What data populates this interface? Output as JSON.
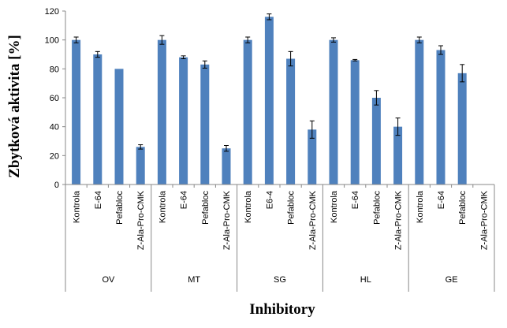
{
  "chart_data": {
    "type": "bar",
    "title": "",
    "xlabel": "Inhibitory",
    "ylabel": "Zbytková aktivita [%]",
    "ylim": [
      0,
      120
    ],
    "yticks": [
      0,
      20,
      40,
      60,
      80,
      100,
      120
    ],
    "grid": false,
    "legend": "none",
    "bar_color": "#4f81bd",
    "groups": [
      {
        "name": "OV",
        "categories": [
          "Kontrola",
          "E-64",
          "Pefabloc",
          "Z-Ala-Pro-CMK"
        ],
        "values": [
          100,
          90,
          80,
          26
        ],
        "errors": [
          2,
          2,
          0,
          1.5
        ]
      },
      {
        "name": "MT",
        "categories": [
          "Kontrola",
          "E-64",
          "Pefabloc",
          "Z-Ala-Pro-CMK"
        ],
        "values": [
          100,
          88,
          83,
          25
        ],
        "errors": [
          3,
          1,
          2.5,
          2
        ]
      },
      {
        "name": "SG",
        "categories": [
          "Kontrola",
          "E6-4",
          "Pefabloc",
          "Z-Ala-Pro-CMK"
        ],
        "values": [
          100,
          116,
          87,
          38
        ],
        "errors": [
          2,
          2,
          5,
          6
        ]
      },
      {
        "name": "HL",
        "categories": [
          "Kontrola",
          "E-64",
          "Pefabloc",
          "Z-Ala-Pro-CMK"
        ],
        "values": [
          100,
          86,
          60,
          40
        ],
        "errors": [
          1.5,
          0.5,
          5,
          6
        ]
      },
      {
        "name": "GE",
        "categories": [
          "Kontrola",
          "E-64",
          "Pefabloc",
          "Z-Ala-Pro-CMK"
        ],
        "values": [
          100,
          93,
          77,
          0
        ],
        "errors": [
          2,
          3,
          6,
          0
        ]
      }
    ]
  }
}
